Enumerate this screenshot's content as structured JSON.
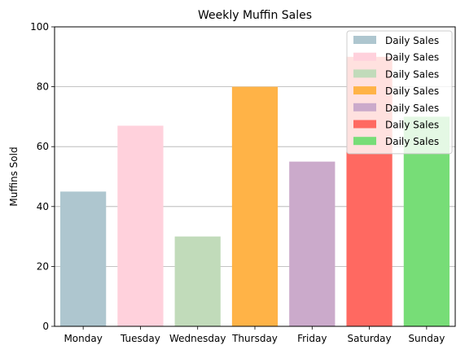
{
  "chart_data": {
    "type": "bar",
    "title": "Weekly Muffin Sales",
    "xlabel": "",
    "ylabel": "Muffins Sold",
    "categories": [
      "Monday",
      "Tuesday",
      "Wednesday",
      "Thursday",
      "Friday",
      "Saturday",
      "Sunday"
    ],
    "values": [
      45,
      67,
      30,
      80,
      55,
      90,
      70
    ],
    "colors": [
      "#aec6cf",
      "#ffd1dc",
      "#c1dbba",
      "#ffb347",
      "#cbaacb",
      "#ff6961",
      "#77dd77"
    ],
    "ylim": [
      0,
      100
    ],
    "yticks": [
      "0",
      "20",
      "40",
      "60",
      "80",
      "100"
    ],
    "grid": "y",
    "legend": {
      "position": "top-right",
      "entries": [
        "Daily Sales",
        "Daily Sales",
        "Daily Sales",
        "Daily Sales",
        "Daily Sales",
        "Daily Sales",
        "Daily Sales"
      ]
    }
  }
}
